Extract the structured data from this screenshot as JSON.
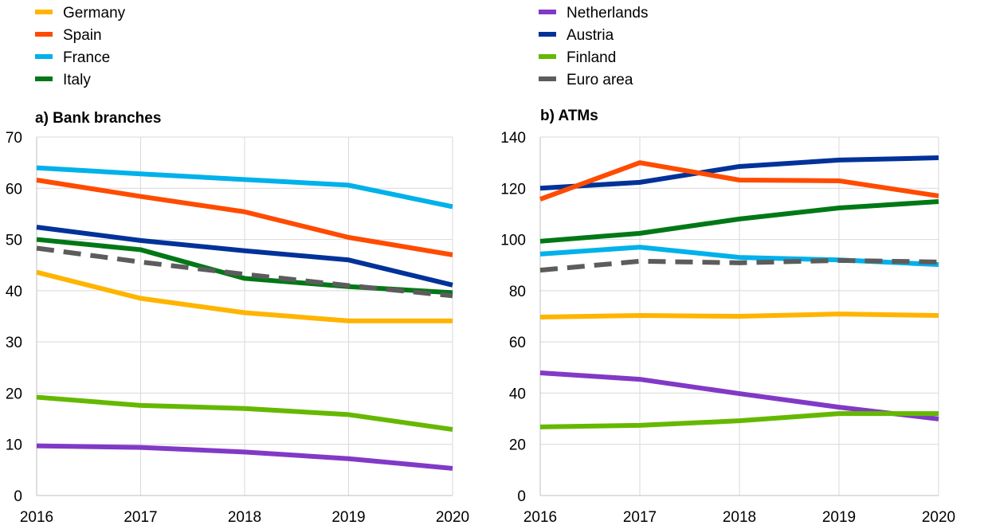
{
  "chart_data": {
    "type": "line",
    "legend": {
      "placement": "top",
      "entries": [
        "Germany",
        "Spain",
        "France",
        "Italy",
        "Netherlands",
        "Austria",
        "Finland",
        "Euro area"
      ]
    },
    "series_styles": {
      "Germany": {
        "color": "#FFB400",
        "dash": false
      },
      "Spain": {
        "color": "#FF4B00",
        "dash": false
      },
      "France": {
        "color": "#00B1EA",
        "dash": false
      },
      "Italy": {
        "color": "#007816",
        "dash": false
      },
      "Netherlands": {
        "color": "#8139C6",
        "dash": false
      },
      "Austria": {
        "color": "#003299",
        "dash": false
      },
      "Finland": {
        "color": "#65B800",
        "dash": false
      },
      "Euro area": {
        "color": "#5C5C5C",
        "dash": true
      }
    },
    "panels": [
      {
        "title": "a) Bank branches",
        "x": [
          "2016",
          "2017",
          "2018",
          "2019",
          "2020"
        ],
        "ylim": [
          0,
          70
        ],
        "yticks": [
          0,
          10,
          20,
          30,
          40,
          50,
          60,
          70
        ],
        "grid": true,
        "series": [
          {
            "name": "France",
            "values": [
              64,
              62.8,
              61.7,
              60.6,
              56.4
            ]
          },
          {
            "name": "Spain",
            "values": [
              61.6,
              58.4,
              55.4,
              50.4,
              47
            ]
          },
          {
            "name": "Austria",
            "values": [
              52.4,
              49.8,
              47.8,
              46,
              41.1
            ]
          },
          {
            "name": "Italy",
            "values": [
              50,
              48,
              42.4,
              40.8,
              39.6
            ]
          },
          {
            "name": "Euro area",
            "values": [
              48.3,
              45.6,
              43.2,
              41,
              39
            ]
          },
          {
            "name": "Germany",
            "values": [
              43.6,
              38.5,
              35.7,
              34.1,
              34.1
            ]
          },
          {
            "name": "Finland",
            "values": [
              19.2,
              17.6,
              17,
              15.8,
              12.9
            ]
          },
          {
            "name": "Netherlands",
            "values": [
              9.7,
              9.4,
              8.5,
              7.2,
              5.3
            ]
          }
        ]
      },
      {
        "title": "b) ATMs",
        "x": [
          "2016",
          "2017",
          "2018",
          "2019",
          "2020"
        ],
        "ylim": [
          0,
          140
        ],
        "yticks": [
          0,
          20,
          40,
          60,
          80,
          100,
          120,
          140
        ],
        "grid": true,
        "series": [
          {
            "name": "Austria",
            "values": [
              120,
              122.3,
              128.5,
              131,
              131.9
            ]
          },
          {
            "name": "Spain",
            "values": [
              115.7,
              130,
              123.2,
              122.9,
              117
            ]
          },
          {
            "name": "Italy",
            "values": [
              99.3,
              102.4,
              108,
              112.3,
              114.8
            ]
          },
          {
            "name": "France",
            "values": [
              94.3,
              97,
              93,
              92,
              90.2
            ]
          },
          {
            "name": "Euro area",
            "values": [
              88,
              91.5,
              90.9,
              91.8,
              91.2
            ]
          },
          {
            "name": "Germany",
            "values": [
              69.7,
              70.3,
              70,
              70.9,
              70.3
            ]
          },
          {
            "name": "Netherlands",
            "values": [
              47.9,
              45.4,
              39.8,
              34.5,
              29.9
            ]
          },
          {
            "name": "Finland",
            "values": [
              26.8,
              27.4,
              29.2,
              32,
              32
            ]
          }
        ]
      }
    ]
  }
}
